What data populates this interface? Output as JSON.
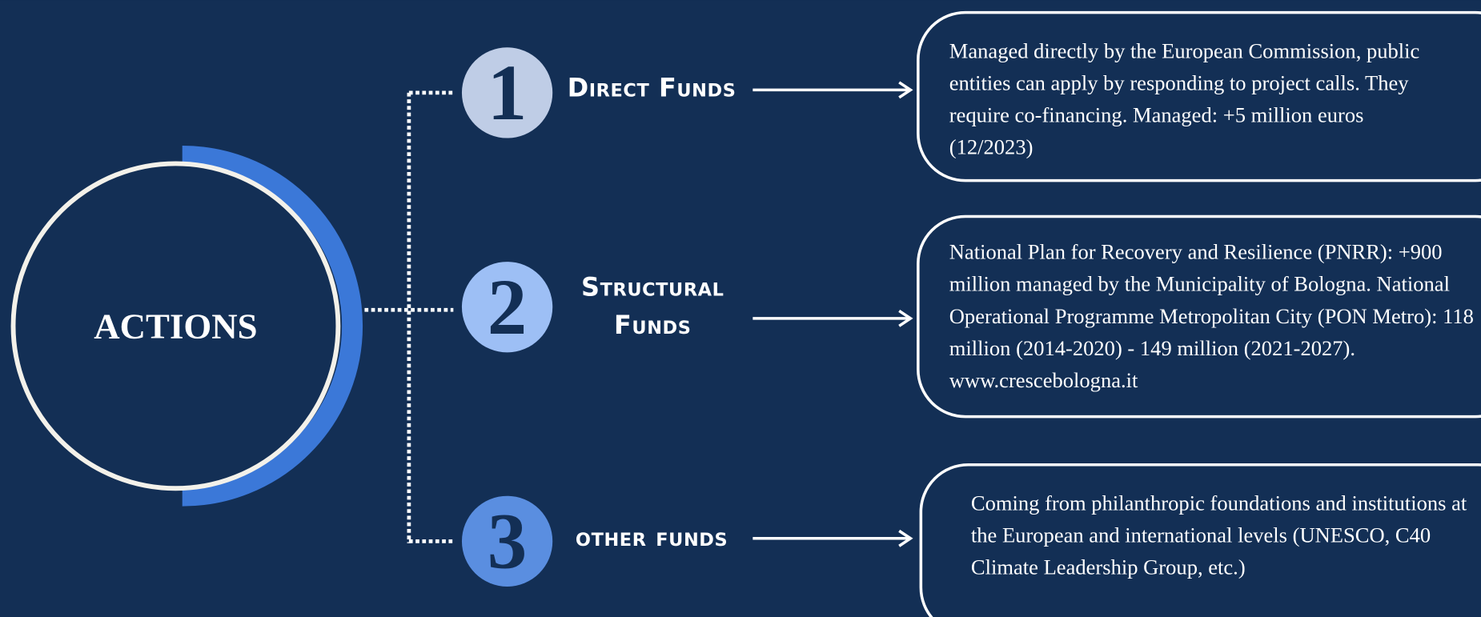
{
  "center": {
    "label": "ACTIONS"
  },
  "items": [
    {
      "number": "1",
      "label": "Direct Funds",
      "description": "Managed directly by the European Commission, public entities can apply by responding to project calls. They require co-financing. Managed: +5 million euros (12/2023)"
    },
    {
      "number": "2",
      "label": "Structural Funds",
      "description": "National Plan for Recovery and Resilience (PNRR): +900 million managed by the Municipality of Bologna. National Operational Programme Metropolitan City (PON Metro): 118 million (2014-2020) - 149 million (2021-2027). www.crescebologna.it"
    },
    {
      "number": "3",
      "label": "other funds",
      "description": "Coming from philanthropic foundations and institutions at the European and international levels (UNESCO, C40 Climate Leadership Group, etc.)"
    }
  ]
}
